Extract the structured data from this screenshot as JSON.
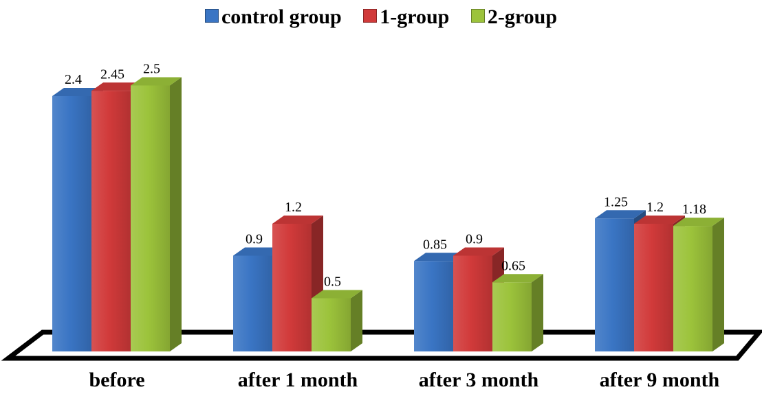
{
  "chart_data": {
    "type": "bar",
    "categories": [
      "before",
      "after 1 month",
      "after 3 month",
      "after 9 month"
    ],
    "series": [
      {
        "name": "control group",
        "values": [
          2.4,
          0.9,
          0.85,
          1.25
        ],
        "color": "#3a75c4"
      },
      {
        "name": "1-group",
        "values": [
          2.45,
          1.2,
          0.9,
          1.2
        ],
        "color": "#d13a3a"
      },
      {
        "name": "2-group",
        "values": [
          2.5,
          0.5,
          0.65,
          1.18
        ],
        "color": "#9cc33b"
      }
    ],
    "value_labels": [
      [
        "2.4",
        "0.9",
        "0.85",
        "1.25"
      ],
      [
        "2.45",
        "1.2",
        "0.9",
        "1.2"
      ],
      [
        "2.5",
        "0.5",
        "0.65",
        "1.18"
      ]
    ],
    "title": "",
    "xlabel": "",
    "ylabel": "",
    "ylim": [
      0,
      2.5
    ],
    "grid": false,
    "legend_position": "top",
    "style": "3d-bars"
  }
}
